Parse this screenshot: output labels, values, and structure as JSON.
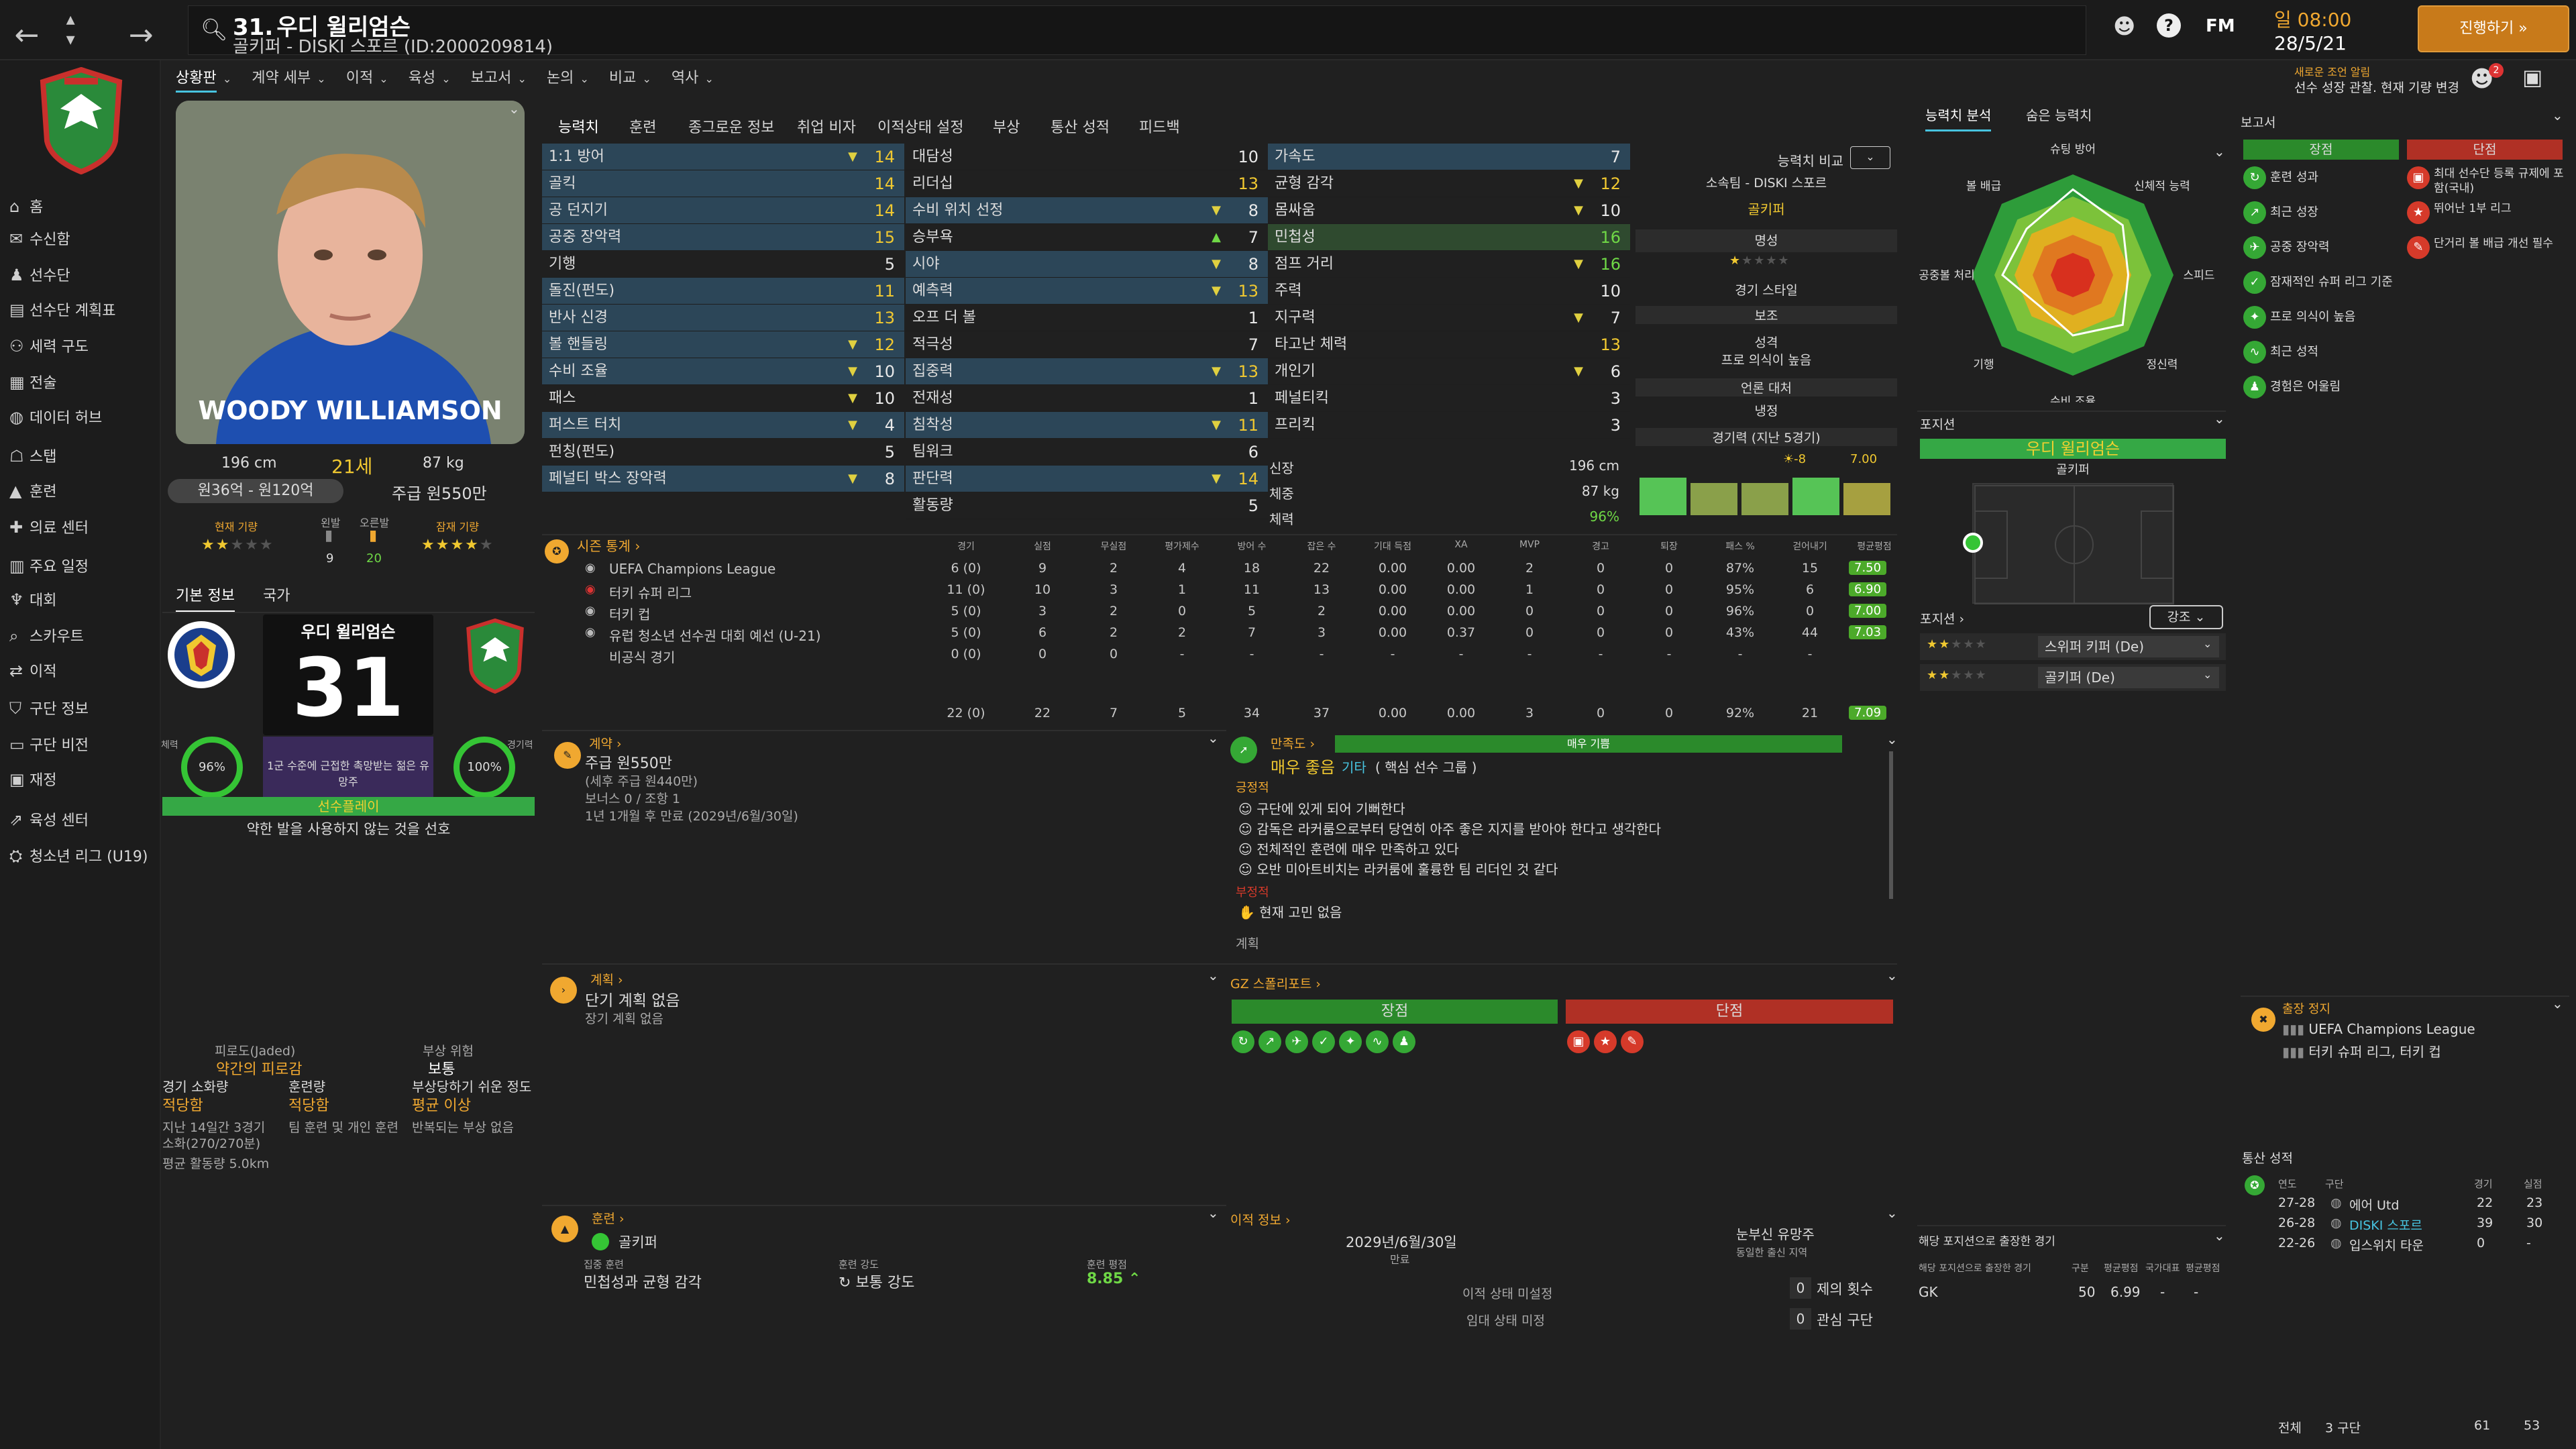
{
  "topbar": {
    "player_number": "31.",
    "player_name": "우디 윌리엄슨",
    "subtitle": "골키퍼 - DISKI 스포르 (ID:2000209814)",
    "time": "일 08:00",
    "date": "28/5/21",
    "continue_label": "진행하기",
    "notice_title": "새로운 조언 알림",
    "notice_text": "선수 성장 관찰. 현재 기량 변경",
    "notification_count": "2",
    "fm_label": "FM"
  },
  "sidebar": {
    "items": [
      {
        "label": "홈",
        "icon": "home-icon"
      },
      {
        "label": "수신함",
        "icon": "inbox-icon"
      },
      {
        "label": "선수단",
        "icon": "squad-icon"
      },
      {
        "label": "선수단 계획표",
        "icon": "squad-plan-icon"
      },
      {
        "label": "세력 구도",
        "icon": "dynamics-icon"
      },
      {
        "label": "전술",
        "icon": "tactics-icon"
      },
      {
        "label": "데이터 허브",
        "icon": "data-hub-icon"
      },
      {
        "label": "스탭",
        "icon": "staff-icon"
      },
      {
        "label": "훈련",
        "icon": "training-icon"
      },
      {
        "label": "의료 센터",
        "icon": "medical-icon"
      },
      {
        "label": "주요 일정",
        "icon": "schedule-icon"
      },
      {
        "label": "대회",
        "icon": "competition-icon"
      },
      {
        "label": "스카우트",
        "icon": "scout-icon"
      },
      {
        "label": "이적",
        "icon": "transfer-icon"
      },
      {
        "label": "구단 정보",
        "icon": "club-info-icon"
      },
      {
        "label": "구단 비전",
        "icon": "club-vision-icon"
      },
      {
        "label": "재정",
        "icon": "finance-icon"
      },
      {
        "label": "육성 센터",
        "icon": "development-icon"
      },
      {
        "label": "청소년 리그 (U19)",
        "icon": "youth-league-icon"
      }
    ]
  },
  "subtabs": [
    "상황판",
    "계약 세부",
    "이적",
    "육성",
    "보고서",
    "논의",
    "비교",
    "역사"
  ],
  "profile": {
    "height": "196 cm",
    "age": "21세",
    "weight": "87 kg",
    "value_range": "원36억 - 원120억",
    "wage": "주급 원550만",
    "current_ability_label": "현재 기량",
    "left_foot_label": "왼발",
    "right_foot_label": "오른발",
    "potential_label": "잠재 기량",
    "left_foot_val": "9",
    "right_foot_val": "20",
    "tab_basic": "기본 정보",
    "tab_nation": "국가",
    "card_name": "우디 윌리엄슨",
    "card_number": "31",
    "cond_label": "체력",
    "cond_val": "96%",
    "sharp_label": "경기력",
    "sharp_val": "100%",
    "card_desc": "1군 수준에 근접한 촉망받는 젊은 유망주",
    "role_bar": "선수플레이",
    "trait": "약한 발을 사용하지 않는 것을 선호",
    "shirt_text": "WOODY WILLIAMSON"
  },
  "fatigue": {
    "title": "피로도(Jaded)",
    "value": "약간의 피로감",
    "injury_title": "부상 위험",
    "injury_val": "보통",
    "load_label": "경기 소화량",
    "load_val": "적당함",
    "train_label": "훈련량",
    "train_val": "적당함",
    "inj_label": "부상당하기 쉬운 정도",
    "inj_val": "평균 이상",
    "note1": "지난 14일간 3경기",
    "note2": "소화(270/270분)",
    "note3": "팀 훈련 및 개인 훈련",
    "note4": "반복되는 부상 없음",
    "note5": "평균 활동량 5.0km"
  },
  "attr_tabs": [
    "능력치",
    "훈련",
    "종그로운 정보",
    "취업 비자",
    "이적상태 설정",
    "부상",
    "통산 성적",
    "피드백"
  ],
  "attributes": {
    "gk": [
      {
        "n": "1:1 방어",
        "v": "14",
        "hl": 1,
        "a": "▼"
      },
      {
        "n": "골킥",
        "v": "14",
        "hl": 1,
        "a": ""
      },
      {
        "n": "공 던지기",
        "v": "14",
        "hl": 1,
        "a": ""
      },
      {
        "n": "공중 장악력",
        "v": "15",
        "hl": 1,
        "a": ""
      },
      {
        "n": "기행",
        "v": "5",
        "hl": 0,
        "a": ""
      },
      {
        "n": "돌진(펀도)",
        "v": "11",
        "hl": 1,
        "a": ""
      },
      {
        "n": "반사 신경",
        "v": "13",
        "hl": 1,
        "a": ""
      },
      {
        "n": "볼 핸들링",
        "v": "12",
        "hl": 1,
        "a": "▼"
      },
      {
        "n": "수비 조율",
        "v": "10",
        "hl": 1,
        "a": "▼"
      },
      {
        "n": "패스",
        "v": "10",
        "hl": 0,
        "a": "▼"
      },
      {
        "n": "퍼스트 터치",
        "v": "4",
        "hl": 1,
        "a": "▼"
      },
      {
        "n": "펀칭(펀도)",
        "v": "5",
        "hl": 0,
        "a": ""
      },
      {
        "n": "페널티 박스 장악력",
        "v": "8",
        "hl": 1,
        "a": "▼"
      }
    ],
    "mental": [
      {
        "n": "대담성",
        "v": "10",
        "hl": 0,
        "a": ""
      },
      {
        "n": "리더십",
        "v": "13",
        "hl": 0,
        "a": ""
      },
      {
        "n": "수비 위치 선정",
        "v": "8",
        "hl": 1,
        "a": "▼"
      },
      {
        "n": "승부욕",
        "v": "7",
        "hl": 0,
        "a": "▲"
      },
      {
        "n": "시야",
        "v": "8",
        "hl": 1,
        "a": "▼"
      },
      {
        "n": "예측력",
        "v": "13",
        "hl": 1,
        "a": "▼"
      },
      {
        "n": "오프 더 볼",
        "v": "1",
        "hl": 0,
        "a": ""
      },
      {
        "n": "적극성",
        "v": "7",
        "hl": 0,
        "a": ""
      },
      {
        "n": "집중력",
        "v": "13",
        "hl": 1,
        "a": "▼"
      },
      {
        "n": "전재성",
        "v": "1",
        "hl": 0,
        "a": ""
      },
      {
        "n": "침착성",
        "v": "11",
        "hl": 1,
        "a": "▼"
      },
      {
        "n": "팀워크",
        "v": "6",
        "hl": 0,
        "a": ""
      },
      {
        "n": "판단력",
        "v": "14",
        "hl": 1,
        "a": "▼"
      },
      {
        "n": "활동량",
        "v": "5",
        "hl": 0,
        "a": ""
      }
    ],
    "physical": [
      {
        "n": "가속도",
        "v": "7",
        "hl": 1,
        "a": ""
      },
      {
        "n": "균형 감각",
        "v": "12",
        "hl": 0,
        "a": "▼"
      },
      {
        "n": "몸싸움",
        "v": "10",
        "hl": 0,
        "a": "▼"
      },
      {
        "n": "민첩성",
        "v": "16",
        "hl": 1,
        "a": ""
      },
      {
        "n": "점프 거리",
        "v": "16",
        "hl": 0,
        "a": "▼"
      },
      {
        "n": "주력",
        "v": "10",
        "hl": 0,
        "a": ""
      },
      {
        "n": "지구력",
        "v": "7",
        "hl": 0,
        "a": "▼"
      },
      {
        "n": "타고난 체력",
        "v": "13",
        "hl": 0,
        "a": ""
      },
      {
        "n": "개인기",
        "v": "6",
        "hl": 0,
        "a": "▼"
      },
      {
        "n": "페널티킥",
        "v": "3",
        "hl": 0,
        "a": ""
      },
      {
        "n": "프리킥",
        "v": "3",
        "hl": 0,
        "a": ""
      }
    ]
  },
  "compare": {
    "label": "능력치 비교",
    "club": "소속팀 - DISKI 스포르",
    "position": "골키퍼",
    "rep_label": "명성",
    "style_label": "경기 스타일",
    "style_val": "보조",
    "pers_label": "성격",
    "pers_val": "프로 의식이 높음",
    "media_label": "언론 대처",
    "media_val": "냉정",
    "form_label": "경기력 (지난 5경기)",
    "form_diff": "-8",
    "form_avg": "7.00",
    "height_label": "신장",
    "height_val": "196 cm",
    "weight_label": "체중",
    "weight_val": "87 kg",
    "cond_label": "체력",
    "cond_val": "96%"
  },
  "season_stats": {
    "title": "시즌 통계",
    "headers": [
      "경기",
      "실점",
      "무실점",
      "평가제수",
      "방어 수",
      "잡은 수",
      "기대 득점",
      "XA",
      "MVP",
      "경고",
      "퇴장",
      "패스 %",
      "걷어내기",
      "평균평점"
    ],
    "rows": [
      {
        "comp": "UEFA Champions League",
        "vals": [
          "6 (0)",
          "9",
          "2",
          "4",
          "18",
          "22",
          "0.00",
          "0.00",
          "2",
          "0",
          "0",
          "87%",
          "15"
        ],
        "rating": "7.50"
      },
      {
        "comp": "터키 슈퍼 리그",
        "vals": [
          "11 (0)",
          "10",
          "3",
          "1",
          "11",
          "13",
          "0.00",
          "0.00",
          "1",
          "0",
          "0",
          "95%",
          "6"
        ],
        "rating": "6.90"
      },
      {
        "comp": "터키 컵",
        "vals": [
          "5 (0)",
          "3",
          "2",
          "0",
          "5",
          "2",
          "0.00",
          "0.00",
          "0",
          "0",
          "0",
          "96%",
          "0"
        ],
        "rating": "7.00"
      },
      {
        "comp": "유럽 청소년 선수권 대회 예선 (U-21)",
        "vals": [
          "5 (0)",
          "6",
          "2",
          "2",
          "7",
          "3",
          "0.00",
          "0.37",
          "0",
          "0",
          "0",
          "43%",
          "44"
        ],
        "rating": "7.03"
      },
      {
        "comp": "비공식 경기",
        "vals": [
          "0 (0)",
          "0",
          "0",
          "-",
          "-",
          "-",
          "-",
          "-",
          "-",
          "-",
          "-",
          "-",
          "-"
        ],
        "rating": ""
      }
    ],
    "total": [
      "22 (0)",
      "22",
      "7",
      "5",
      "34",
      "37",
      "0.00",
      "0.00",
      "3",
      "0",
      "0",
      "92%",
      "21"
    ],
    "total_rating": "7.09"
  },
  "contract": {
    "title": "계약",
    "wage": "주급 원550만",
    "wage_note": "(세후 주급 원440만)",
    "bonus": "보너스 0 / 조항 1",
    "expiry": "1년 1개월 후 만료 (2029년/6월/30일)"
  },
  "happiness": {
    "title": "만족도",
    "bar_label": "매우 기쁨",
    "status": "매우 좋음",
    "status2": "기타",
    "group": "( 핵심 선수 그룹 )",
    "pos_title": "긍정적",
    "pos_items": [
      "구단에 있게 되어 기뻐한다",
      "감독은 라커룸으로부터 당연히 아주 좋은 지지를 받아야 한다고 생각한다",
      "전체적인 훈련에 매우 만족하고 있다",
      "오반 미아트비치는 라커룸에 훌륭한 팀 리더인 것 같다"
    ],
    "neg_title": "부정적",
    "neg_items": [
      "현재 고민 없음"
    ],
    "plan_title": "계획"
  },
  "plans": {
    "title": "계획",
    "short": "단기 계획 없음",
    "long": "장기 계획 없음"
  },
  "report_gz": {
    "title": "GZ 스폴리포트",
    "pros": "장점",
    "cons": "단점"
  },
  "training": {
    "title": "훈련",
    "position": "골키퍼",
    "focus_label": "집중 훈련",
    "focus_val": "민첩성과 균형 감각",
    "intensity_label": "훈련 강도",
    "intensity_val": "보통 강도",
    "rating_label": "훈련 평점",
    "rating_val": "8.85"
  },
  "transfer": {
    "title": "이적 정보",
    "expiry_date": "2029년/6월/30일",
    "expiry_label": "만료",
    "status1": "이적 상태 미설정",
    "status2": "임대 상태 미정",
    "interest_label": "눈부신 유망주",
    "interest_sub": "동일한 출신 지역",
    "offers": "0",
    "offers_label": "제의 횟수",
    "clubs": "0",
    "clubs_label": "관심 구단"
  },
  "radar": {
    "tab1": "능력치 분석",
    "tab2": "숨은 능력치",
    "labels": [
      "슈팅 방어",
      "신체적 능력",
      "스피드",
      "정신력",
      "수비 조율",
      "기행",
      "공중볼 처리",
      "볼 배급"
    ],
    "values": [
      0.85,
      0.7,
      0.55,
      0.7,
      0.6,
      0.45,
      0.7,
      0.65
    ]
  },
  "position_panel": {
    "title": "포지션",
    "player": "우디 윌리엄슨",
    "pos": "골키퍼",
    "role_title": "포지션",
    "strength_btn": "강조",
    "roles": [
      {
        "name": "스위퍼 키퍼 (De)",
        "stars": 2
      },
      {
        "name": "골키퍼 (De)",
        "stars": 2
      }
    ]
  },
  "gk_played": {
    "title": "해당 포지션으로 출장한 경기",
    "label": "해당 포지션으로 출장한 경기",
    "col1": "구분",
    "col2": "평균평점",
    "col3": "국가대표",
    "col4": "평균평점",
    "pos": "GK",
    "apps": "50",
    "rating": "6.99"
  },
  "reports": {
    "title": "보고서",
    "pros_title": "장점",
    "cons_title": "단점",
    "pros": [
      "훈련 성과",
      "최근 성장",
      "공중 장악력",
      "잠재적인 슈퍼 리그 기준",
      "프로 의식이 높음",
      "최근 성적",
      "경험은 어울림"
    ],
    "cons": [
      "최대 선수단 등록 규제에 포함(국내)",
      "뛰어난 1부 리그",
      "단거리 볼 배급 개선 필수"
    ]
  },
  "suspension": {
    "title": "출장 정지",
    "items": [
      "UEFA Champions League",
      "터키 슈퍼 리그, 터키 컵"
    ]
  },
  "career": {
    "title": "통산 성적",
    "h_season": "연도",
    "h_club": "구단",
    "h_apps": "경기",
    "h_goals": "실점",
    "rows": [
      {
        "season": "27-28",
        "club": "에어 Utd",
        "apps": "22",
        "goals": "23"
      },
      {
        "season": "26-28",
        "club": "DISKI 스포르",
        "apps": "39",
        "goals": "30"
      },
      {
        "season": "22-26",
        "club": "입스위치 타운",
        "apps": "0",
        "goals": "-"
      }
    ],
    "total_label": "전체",
    "total_clubs": "3 구단",
    "total_apps": "61",
    "total_goals": "53"
  },
  "colors": {
    "accent": "#47c4e0",
    "green": "#2b8a2b",
    "red": "#c0392b",
    "orange": "#f0a830"
  }
}
